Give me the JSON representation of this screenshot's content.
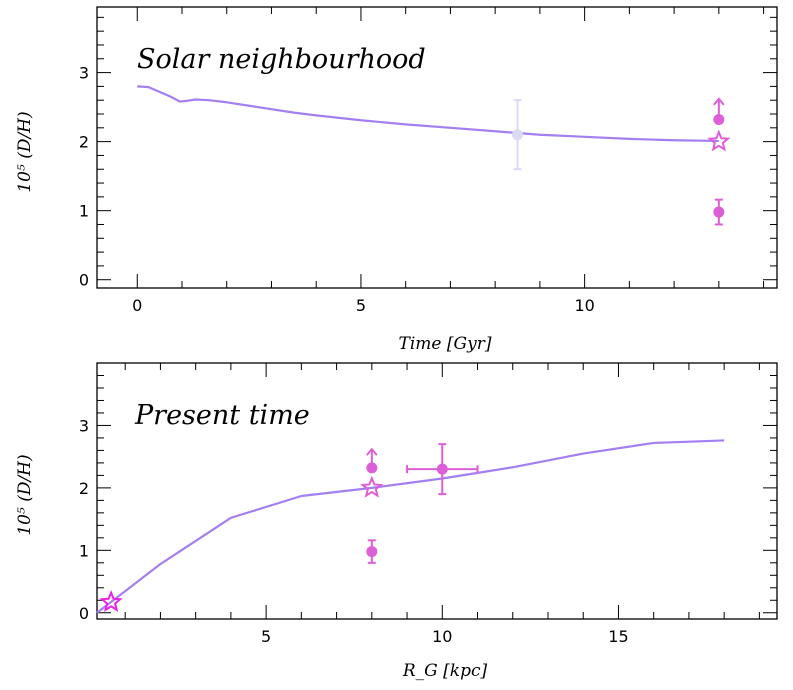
{
  "colors": {
    "model_line": "#a47ff0",
    "obs_magenta": "#dd5fd8",
    "obs_light": "#dcdaf2",
    "star_magenta": "#ee22e8"
  },
  "chart_data": [
    {
      "type": "line",
      "title": "Solar neighbourhood",
      "xlabel": "Time [Gyr]",
      "ylabel": "10⁵ (D/H)",
      "xlim": [
        -0.9,
        14.3
      ],
      "ylim": [
        -0.12,
        3.95
      ],
      "xticks": [
        0,
        5,
        10
      ],
      "yticks": [
        0,
        1,
        2,
        3
      ],
      "xticklabels": [
        "0",
        "5",
        "10"
      ],
      "yticklabels": [
        "0",
        "1",
        "2",
        "3"
      ],
      "series": [
        {
          "kind": "model",
          "x": [
            0,
            0.25,
            0.5,
            0.75,
            0.95,
            1.1,
            1.3,
            1.6,
            2.0,
            2.5,
            3.0,
            3.5,
            4.0,
            5.0,
            6.0,
            7.0,
            8.0,
            9.0,
            10.0,
            11.0,
            12.0,
            13.0
          ],
          "y": [
            2.8,
            2.79,
            2.72,
            2.65,
            2.58,
            2.59,
            2.61,
            2.6,
            2.57,
            2.52,
            2.47,
            2.42,
            2.38,
            2.31,
            2.25,
            2.2,
            2.15,
            2.1,
            2.07,
            2.04,
            2.02,
            2.01
          ]
        },
        {
          "kind": "observations",
          "points": [
            {
              "x": 8.5,
              "y": 2.1,
              "yerr": [
                0.5,
                0.5
              ],
              "style": "light-dot"
            },
            {
              "x": 13.0,
              "y": 2.32,
              "yerr": [
                0,
                0.3
              ],
              "lower_limit": true,
              "style": "dot"
            },
            {
              "x": 13.0,
              "y": 0.98,
              "yerr": [
                0.18,
                0.18
              ],
              "style": "dot"
            },
            {
              "x": 13.0,
              "y": 2.0,
              "style": "star"
            }
          ]
        }
      ],
      "grid": false
    },
    {
      "type": "line",
      "title": "Present time",
      "xlabel": "R_G [kpc]",
      "ylabel": "10⁵ (D/H)",
      "xlim": [
        0.2,
        19.5
      ],
      "ylim": [
        -0.1,
        4.0
      ],
      "xticks": [
        5,
        10,
        15
      ],
      "yticks": [
        0,
        1,
        2,
        3
      ],
      "xticklabels": [
        "5",
        "10",
        "15"
      ],
      "yticklabels": [
        "0",
        "1",
        "2",
        "3"
      ],
      "series": [
        {
          "kind": "model",
          "x": [
            0.2,
            2.0,
            4.0,
            6.0,
            8.0,
            10.0,
            12.0,
            14.0,
            16.0,
            18.0
          ],
          "y": [
            0.0,
            0.78,
            1.52,
            1.87,
            2.0,
            2.15,
            2.33,
            2.55,
            2.72,
            2.76
          ]
        },
        {
          "kind": "observations",
          "points": [
            {
              "x": 8.0,
              "y": 2.32,
              "yerr": [
                0,
                0.3
              ],
              "lower_limit": true,
              "style": "dot"
            },
            {
              "x": 8.0,
              "y": 0.98,
              "yerr": [
                0.18,
                0.18
              ],
              "style": "dot"
            },
            {
              "x": 8.0,
              "y": 2.0,
              "style": "star"
            },
            {
              "x": 10.0,
              "y": 2.3,
              "yerr": [
                0.4,
                0.4
              ],
              "xerr": [
                1.0,
                1.0
              ],
              "style": "dot"
            },
            {
              "x": 0.6,
              "y": 0.17,
              "style": "star-bright"
            }
          ]
        }
      ],
      "grid": false
    }
  ]
}
